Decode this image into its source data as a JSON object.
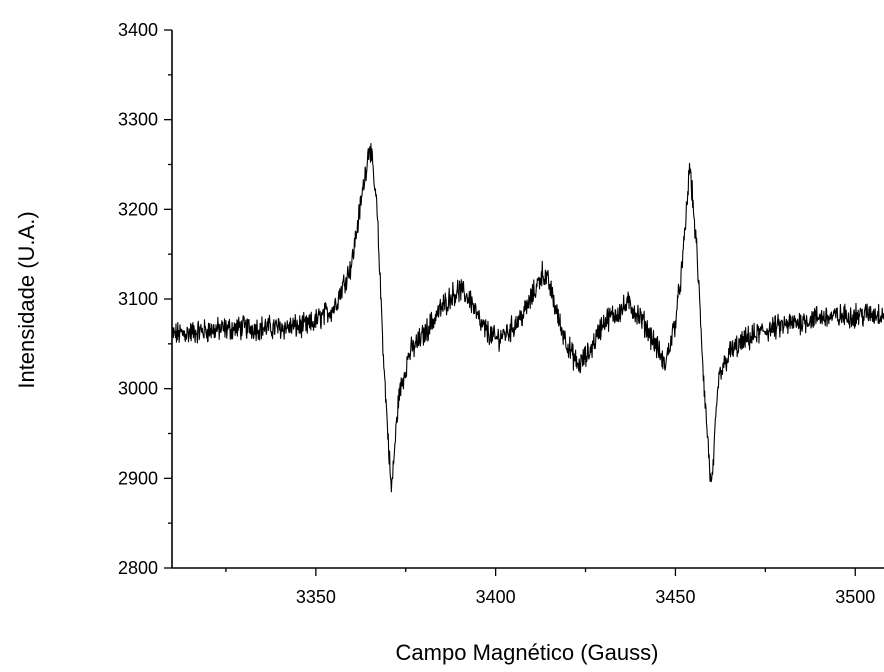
{
  "chart_data": {
    "type": "line",
    "title": "",
    "xlabel": "Campo Magnético (Gauss)",
    "ylabel": "Intensidade (U.A.)",
    "xlim": [
      3310,
      3508
    ],
    "ylim": [
      2800,
      3400
    ],
    "x_ticks": [
      3350,
      3400,
      3450,
      3500
    ],
    "x_tick_labels": [
      "3350",
      "3400",
      "3450",
      "3500"
    ],
    "x_minor_ticks": [
      3325,
      3375,
      3425,
      3475
    ],
    "y_ticks": [
      2800,
      2900,
      3000,
      3100,
      3200,
      3300,
      3400
    ],
    "y_tick_labels": [
      "2800",
      "2900",
      "3000",
      "3100",
      "3200",
      "3300",
      "3400"
    ],
    "y_minor_ticks": [
      2850,
      2950,
      3050,
      3150,
      3250,
      3350
    ],
    "grid": false,
    "line_color": "#000000",
    "series": [
      {
        "x": [
          3310,
          3320,
          3330,
          3340,
          3348,
          3355,
          3360,
          3363,
          3365,
          3367,
          3369,
          3371,
          3373,
          3376,
          3380,
          3384,
          3388,
          3390,
          3393,
          3396,
          3400,
          3404,
          3408,
          3411,
          3413,
          3415,
          3418,
          3421,
          3423,
          3426,
          3430,
          3434,
          3437,
          3441,
          3445,
          3447,
          3450,
          3452,
          3454,
          3456,
          3458,
          3460,
          3462,
          3465,
          3470,
          3475,
          3480,
          3485,
          3490,
          3495,
          3500,
          3505,
          3508
        ],
        "values": [
          3060,
          3065,
          3068,
          3068,
          3070,
          3090,
          3140,
          3220,
          3275,
          3200,
          3020,
          2885,
          2990,
          3040,
          3060,
          3085,
          3105,
          3110,
          3100,
          3070,
          3055,
          3065,
          3085,
          3110,
          3130,
          3115,
          3070,
          3040,
          3025,
          3040,
          3075,
          3085,
          3095,
          3075,
          3045,
          3025,
          3075,
          3140,
          3250,
          3150,
          3000,
          2885,
          3010,
          3040,
          3055,
          3065,
          3070,
          3075,
          3080,
          3080,
          3082,
          3083,
          3084
        ]
      }
    ]
  }
}
